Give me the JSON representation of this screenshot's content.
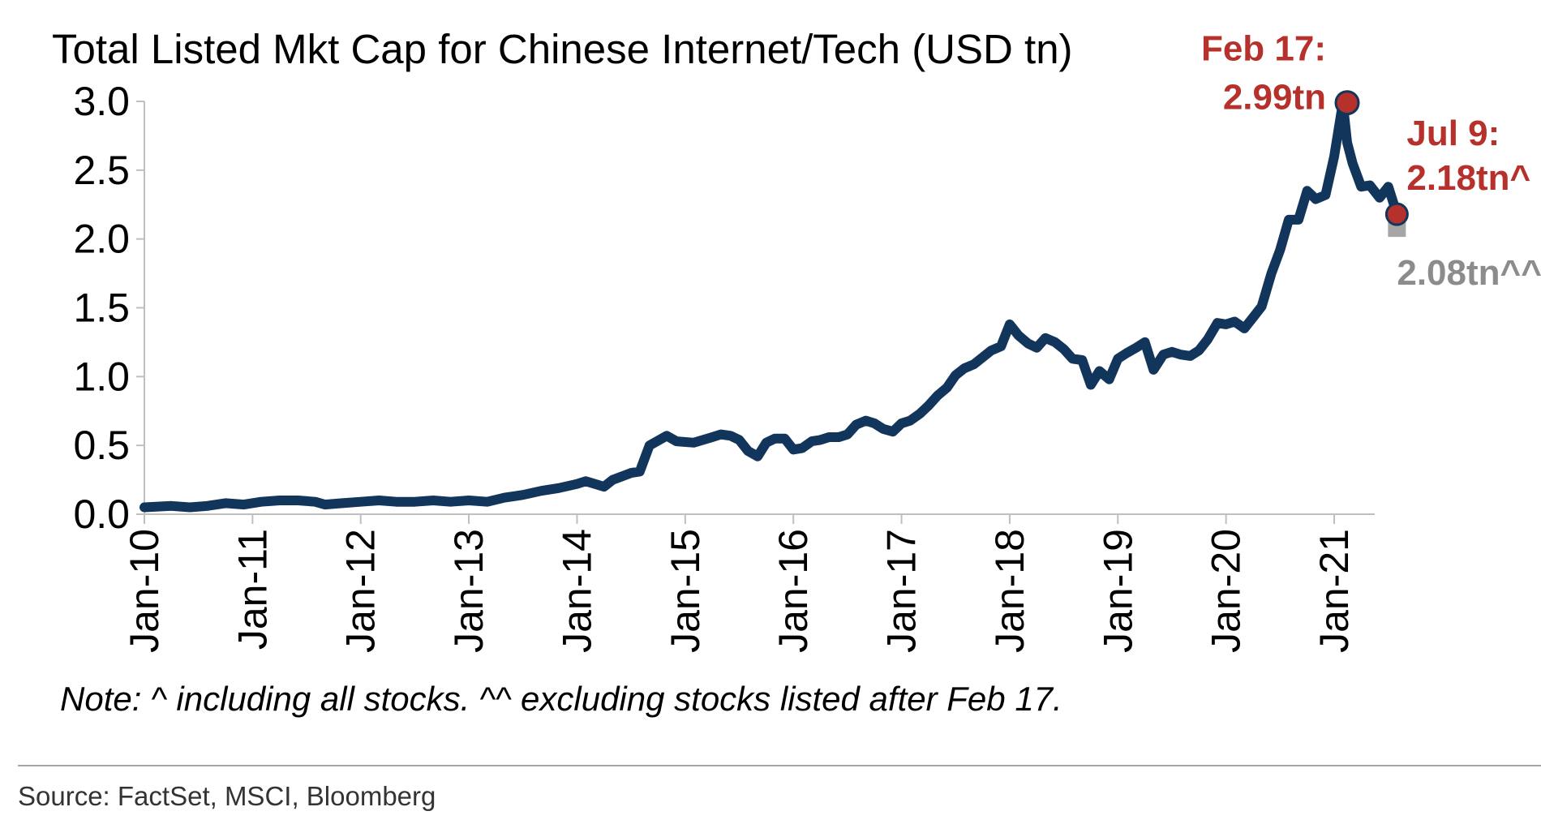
{
  "colors": {
    "line": "#12355b",
    "highlight": "#b7312c",
    "adjusted": "#8c8c8c",
    "adjusted_marker": "#a6a6a6",
    "axis": "#bfbfbf",
    "divider": "#a6a6a6"
  },
  "chart_data": {
    "type": "line",
    "title": "Total Listed Mkt Cap for Chinese Internet/Tech (USD tn)",
    "xlabel": "",
    "ylabel": "",
    "ylim": [
      0,
      3.0
    ],
    "xlim": [
      2010.0,
      2021.58
    ],
    "grid": false,
    "legend": "none",
    "yticks": [
      {
        "value": 0.0,
        "label": "0.0"
      },
      {
        "value": 0.5,
        "label": "0.5"
      },
      {
        "value": 1.0,
        "label": "1.0"
      },
      {
        "value": 1.5,
        "label": "1.5"
      },
      {
        "value": 2.0,
        "label": "2.0"
      },
      {
        "value": 2.5,
        "label": "2.5"
      },
      {
        "value": 3.0,
        "label": "3.0"
      }
    ],
    "xticks": [
      {
        "value": 2010,
        "label": "Jan-10"
      },
      {
        "value": 2011,
        "label": "Jan-11"
      },
      {
        "value": 2012,
        "label": "Jan-12"
      },
      {
        "value": 2013,
        "label": "Jan-13"
      },
      {
        "value": 2014,
        "label": "Jan-14"
      },
      {
        "value": 2015,
        "label": "Jan-15"
      },
      {
        "value": 2016,
        "label": "Jan-16"
      },
      {
        "value": 2017,
        "label": "Jan-17"
      },
      {
        "value": 2018,
        "label": "Jan-18"
      },
      {
        "value": 2019,
        "label": "Jan-19"
      },
      {
        "value": 2020,
        "label": "Jan-20"
      },
      {
        "value": 2021,
        "label": "Jan-21"
      }
    ],
    "series": [
      {
        "name": "Total Listed Mkt Cap",
        "x": [
          2010.0,
          2010.25,
          2010.42,
          2010.58,
          2010.75,
          2010.92,
          2011.08,
          2011.25,
          2011.42,
          2011.58,
          2011.67,
          2011.83,
          2012.0,
          2012.17,
          2012.33,
          2012.5,
          2012.67,
          2012.83,
          2013.0,
          2013.17,
          2013.33,
          2013.5,
          2013.67,
          2013.83,
          2014.0,
          2014.08,
          2014.25,
          2014.33,
          2014.5,
          2014.58,
          2014.67,
          2014.83,
          2014.92,
          2015.08,
          2015.25,
          2015.33,
          2015.42,
          2015.5,
          2015.58,
          2015.67,
          2015.75,
          2015.83,
          2015.92,
          2016.0,
          2016.08,
          2016.17,
          2016.25,
          2016.33,
          2016.42,
          2016.5,
          2016.58,
          2016.67,
          2016.75,
          2016.83,
          2016.92,
          2017.0,
          2017.08,
          2017.17,
          2017.25,
          2017.33,
          2017.42,
          2017.5,
          2017.58,
          2017.67,
          2017.75,
          2017.83,
          2017.92,
          2018.0,
          2018.08,
          2018.17,
          2018.25,
          2018.33,
          2018.42,
          2018.5,
          2018.58,
          2018.67,
          2018.75,
          2018.83,
          2018.92,
          2019.0,
          2019.08,
          2019.17,
          2019.25,
          2019.33,
          2019.42,
          2019.5,
          2019.58,
          2019.67,
          2019.75,
          2019.83,
          2019.92,
          2020.0,
          2020.08,
          2020.17,
          2020.25,
          2020.33,
          2020.42,
          2020.5,
          2020.58,
          2020.67,
          2020.75,
          2020.83,
          2020.92,
          2021.0,
          2021.08,
          2021.12,
          2021.17,
          2021.25,
          2021.33,
          2021.42,
          2021.5,
          2021.58
        ],
        "y": [
          0.05,
          0.06,
          0.05,
          0.06,
          0.08,
          0.07,
          0.09,
          0.1,
          0.1,
          0.09,
          0.07,
          0.08,
          0.09,
          0.1,
          0.09,
          0.09,
          0.1,
          0.09,
          0.1,
          0.09,
          0.12,
          0.14,
          0.17,
          0.19,
          0.22,
          0.24,
          0.2,
          0.25,
          0.3,
          0.31,
          0.5,
          0.57,
          0.53,
          0.52,
          0.56,
          0.58,
          0.57,
          0.54,
          0.46,
          0.42,
          0.52,
          0.55,
          0.55,
          0.47,
          0.48,
          0.53,
          0.54,
          0.56,
          0.56,
          0.58,
          0.65,
          0.68,
          0.66,
          0.62,
          0.6,
          0.66,
          0.68,
          0.73,
          0.79,
          0.86,
          0.92,
          1.01,
          1.06,
          1.09,
          1.14,
          1.19,
          1.22,
          1.38,
          1.3,
          1.24,
          1.21,
          1.28,
          1.25,
          1.2,
          1.13,
          1.12,
          0.94,
          1.04,
          0.98,
          1.13,
          1.17,
          1.21,
          1.25,
          1.05,
          1.16,
          1.18,
          1.16,
          1.15,
          1.19,
          1.27,
          1.39,
          1.38,
          1.4,
          1.35,
          1.43,
          1.51,
          1.75,
          1.92,
          2.14,
          2.14,
          2.35,
          2.29,
          2.32,
          2.6,
          2.99,
          2.7,
          2.55,
          2.38,
          2.39,
          2.3,
          2.38,
          2.18
        ]
      }
    ],
    "annotations": [
      {
        "x": 2021.12,
        "y": 2.99,
        "line1": "Feb 17:",
        "line2": "2.99tn"
      },
      {
        "x": 2021.58,
        "y": 2.18,
        "line1": "Jul 9:",
        "line2": "2.18tn^"
      },
      {
        "x": 2021.58,
        "y": 2.08,
        "line1": "2.08tn^^"
      }
    ],
    "note": "Note: ^ including all stocks. ^^ excluding stocks listed after Feb 17.",
    "source": "Source: FactSet, MSCI, Bloomberg"
  }
}
